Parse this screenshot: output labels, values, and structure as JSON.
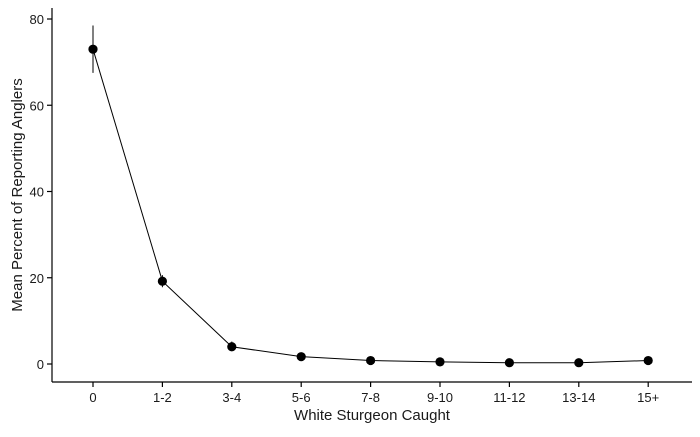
{
  "chart_data": {
    "type": "line",
    "title": "",
    "xlabel": "White Sturgeon Caught",
    "ylabel": "Mean Percent of Reporting Anglers",
    "categories": [
      "0",
      "1-2",
      "3-4",
      "5-6",
      "7-8",
      "9-10",
      "11-12",
      "13-14",
      "15+"
    ],
    "series": [
      {
        "name": "Mean Percent",
        "values": [
          73.0,
          19.2,
          4.0,
          1.7,
          0.8,
          0.5,
          0.3,
          0.3,
          0.8
        ],
        "error_lower": [
          67.5,
          17.8,
          3.0,
          1.2,
          0.4,
          0.2,
          0.1,
          0.1,
          0.4
        ],
        "error_upper": [
          78.5,
          20.6,
          5.2,
          2.2,
          1.2,
          0.8,
          0.5,
          0.5,
          1.2
        ]
      }
    ],
    "yticks": [
      0,
      20,
      40,
      60,
      80
    ],
    "ylim": [
      -3.9,
      82.5
    ],
    "grid": false,
    "legend": "none"
  }
}
